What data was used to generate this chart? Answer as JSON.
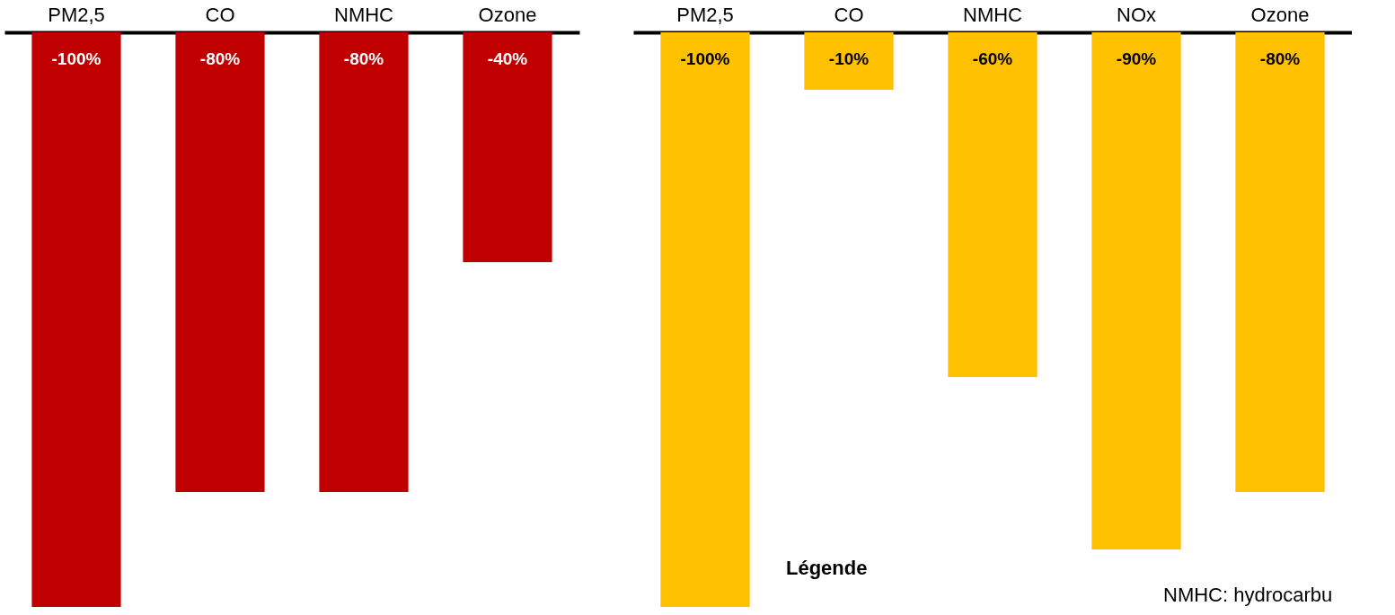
{
  "chart_data": [
    {
      "type": "bar",
      "categories": [
        "PM2,5",
        "CO",
        "NMHC",
        "Ozone"
      ],
      "values": [
        -100,
        -80,
        -80,
        -40
      ],
      "color": "#c00000",
      "value_labels": [
        "-100%",
        "-80%",
        "-80%",
        "-40%"
      ]
    },
    {
      "type": "bar",
      "categories": [
        "PM2,5",
        "CO",
        "NMHC",
        "NOx",
        "Ozone"
      ],
      "values": [
        -100,
        -10,
        -60,
        -90,
        -80
      ],
      "color": "#ffc000",
      "value_labels": [
        "-100%",
        "-10%",
        "-60%",
        "-90%",
        "-80%"
      ],
      "annotations": [
        "Légende",
        "NMHC: hydrocarbu"
      ]
    }
  ]
}
